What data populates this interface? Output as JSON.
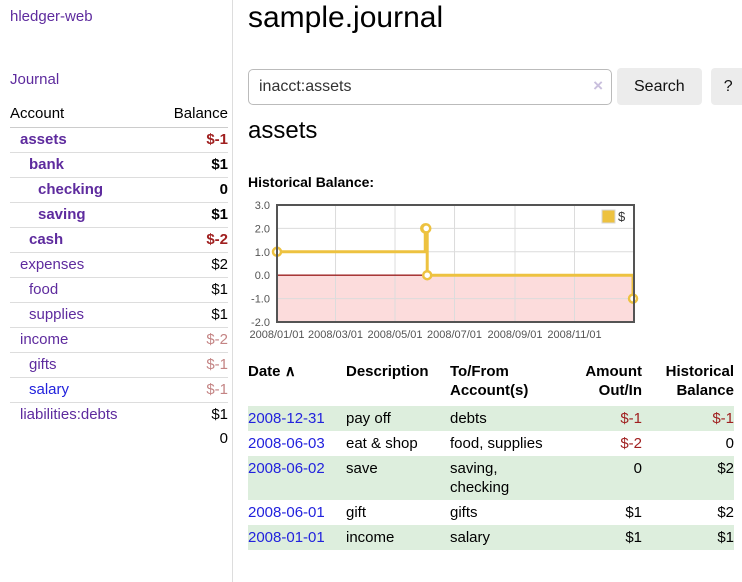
{
  "sidebar": {
    "brand": "hledger-web",
    "nav": {
      "journal": "Journal"
    },
    "accounts": {
      "col_account": "Account",
      "col_balance": "Balance",
      "rows": [
        {
          "name": "assets",
          "indent": 1,
          "balance": "$-1",
          "bold": true,
          "amount_style": "neg-strong",
          "link_style": "purple"
        },
        {
          "name": "bank",
          "indent": 2,
          "balance": "$1",
          "bold": true,
          "amount_style": "normal",
          "link_style": "purple"
        },
        {
          "name": "checking",
          "indent": 3,
          "balance": "0",
          "bold": true,
          "amount_style": "normal",
          "link_style": "purple"
        },
        {
          "name": "saving",
          "indent": 3,
          "balance": "$1",
          "bold": true,
          "amount_style": "normal",
          "link_style": "purple"
        },
        {
          "name": "cash",
          "indent": 2,
          "balance": "$-2",
          "bold": true,
          "amount_style": "neg-strong",
          "link_style": "purple"
        },
        {
          "name": "expenses",
          "indent": 1,
          "balance": "$2",
          "bold": false,
          "amount_style": "normal",
          "link_style": "purple"
        },
        {
          "name": "food",
          "indent": 2,
          "balance": "$1",
          "bold": false,
          "amount_style": "normal",
          "link_style": "purple"
        },
        {
          "name": "supplies",
          "indent": 2,
          "balance": "$1",
          "bold": false,
          "amount_style": "normal",
          "link_style": "purple"
        },
        {
          "name": "income",
          "indent": 1,
          "balance": "$-2",
          "bold": false,
          "amount_style": "neg-faded",
          "link_style": "purple"
        },
        {
          "name": "gifts",
          "indent": 2,
          "balance": "$-1",
          "bold": false,
          "amount_style": "neg-faded",
          "link_style": "purple"
        },
        {
          "name": "salary",
          "indent": 2,
          "balance": "$-1",
          "bold": false,
          "amount_style": "neg-faded",
          "link_style": "blue"
        },
        {
          "name": "liabilities:debts",
          "indent": 1,
          "balance": "$1",
          "bold": false,
          "amount_style": "normal",
          "link_style": "purple"
        }
      ],
      "total": "0"
    }
  },
  "header": {
    "title": "sample.journal"
  },
  "search": {
    "value": "inacct:assets",
    "clear": "×",
    "submit": "Search",
    "help": "?"
  },
  "account_view": {
    "heading": "assets",
    "chart_label": "Historical Balance:"
  },
  "chart_data": {
    "type": "line",
    "step": true,
    "title": "Historical Balance:",
    "series": [
      {
        "name": "$",
        "color": "#edc240",
        "points": [
          {
            "date": "2008/01/01",
            "value": 1
          },
          {
            "date": "2008/06/01",
            "value": 2
          },
          {
            "date": "2008/06/02",
            "value": 2
          },
          {
            "date": "2008/06/03",
            "value": 0
          },
          {
            "date": "2008/12/31",
            "value": -1
          }
        ]
      }
    ],
    "x_start": "2008/01/01",
    "x_end": "2009/01/01",
    "x_ticks": [
      "2008/01/01",
      "2008/03/01",
      "2008/05/01",
      "2008/07/01",
      "2008/09/01",
      "2008/11/01"
    ],
    "y_ticks": [
      {
        "label": "3.0",
        "value": 3
      },
      {
        "label": "2.0",
        "value": 2
      },
      {
        "label": "1.0",
        "value": 1
      },
      {
        "label": "0.0",
        "value": 0
      },
      {
        "label": "-1.0",
        "value": -1
      },
      {
        "label": "-2.0",
        "value": -2
      }
    ],
    "ylim": [
      -2,
      3
    ],
    "grid": true,
    "legend": {
      "label": "$",
      "position": "top-right"
    },
    "colors": {
      "line": "#edc240",
      "marker_fill": "#ffffff",
      "negative_fill": "#fcdcdc",
      "zero_line": "#9c2121",
      "grid": "#dcdcdc",
      "border": "#545454",
      "tick_text": "#545454"
    }
  },
  "register": {
    "header": {
      "date": "Date",
      "sort_indicator": "∧",
      "description": "Description",
      "accounts": [
        "To/From",
        "Account(s)"
      ],
      "amount": [
        "Amount",
        "Out/In"
      ],
      "balance": [
        "Historical",
        "Balance"
      ]
    },
    "rows": [
      {
        "date": "2008-12-31",
        "description": "pay off",
        "accounts": [
          "debts"
        ],
        "amount": "$-1",
        "amount_negative": true,
        "balance": "$-1",
        "balance_negative": true,
        "shaded": true
      },
      {
        "date": "2008-06-03",
        "description": "eat & shop",
        "accounts": [
          "food, supplies"
        ],
        "amount": "$-2",
        "amount_negative": true,
        "balance": "0",
        "balance_negative": false,
        "shaded": false
      },
      {
        "date": "2008-06-02",
        "description": "save",
        "accounts": [
          "saving,",
          "checking"
        ],
        "amount": "0",
        "amount_negative": false,
        "balance": "$2",
        "balance_negative": false,
        "shaded": true
      },
      {
        "date": "2008-06-01",
        "description": "gift",
        "accounts": [
          "gifts"
        ],
        "amount": "$1",
        "amount_negative": false,
        "balance": "$2",
        "balance_negative": false,
        "shaded": false
      },
      {
        "date": "2008-01-01",
        "description": "income",
        "accounts": [
          "salary"
        ],
        "amount": "$1",
        "amount_negative": false,
        "balance": "$1",
        "balance_negative": false,
        "shaded": true
      }
    ]
  },
  "colors": {
    "purple_link": "#5e2b9e",
    "blue_link": "#2222dd",
    "negative_strong": "#a02020",
    "negative_faded": "#c48484",
    "row_shade": "#ddeedd",
    "accent_gold": "#edc240"
  }
}
